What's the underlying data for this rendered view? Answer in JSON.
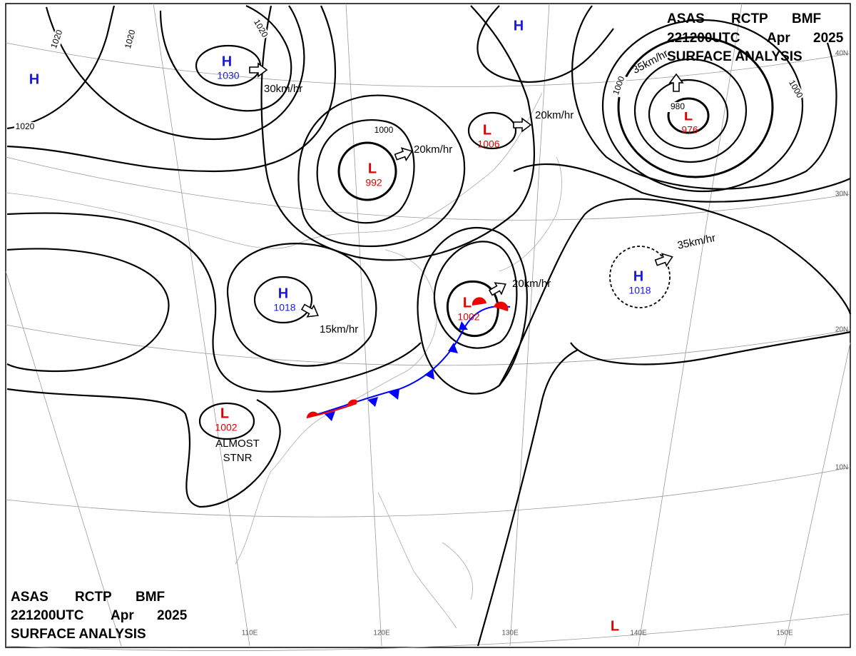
{
  "header": {
    "agency": "ASAS",
    "station": "RCTP",
    "office": "BMF",
    "time": "221200UTC",
    "month": "Apr",
    "year": "2025",
    "product": "SURFACE ANALYSIS"
  },
  "centers": [
    {
      "symbol": "H",
      "value": 1030
    },
    {
      "symbol": "L",
      "value": 992
    },
    {
      "symbol": "L",
      "value": 1006
    },
    {
      "symbol": "L",
      "value": 976
    },
    {
      "symbol": "H",
      "value": 1018
    },
    {
      "symbol": "H",
      "value": 1018
    },
    {
      "symbol": "L",
      "value": 1002
    },
    {
      "symbol": "L",
      "value": 1002
    },
    {
      "symbol": "H"
    },
    {
      "symbol": "H"
    },
    {
      "symbol": "L"
    }
  ],
  "motions": [
    "30km/hr",
    "20km/hr",
    "20km/hr",
    "20km/hr",
    "35km/hr",
    "35km/hr",
    "15km/hr"
  ],
  "isobar_labels": [
    1020,
    1020,
    1020,
    1020,
    1000,
    1000,
    1000,
    980
  ],
  "front_note": [
    "ALMOST",
    "STNR"
  ],
  "latitudes": [
    "40N",
    "30N",
    "20N",
    "10N"
  ],
  "longitudes": [
    "110E",
    "120E",
    "130E",
    "140E",
    "150E"
  ]
}
